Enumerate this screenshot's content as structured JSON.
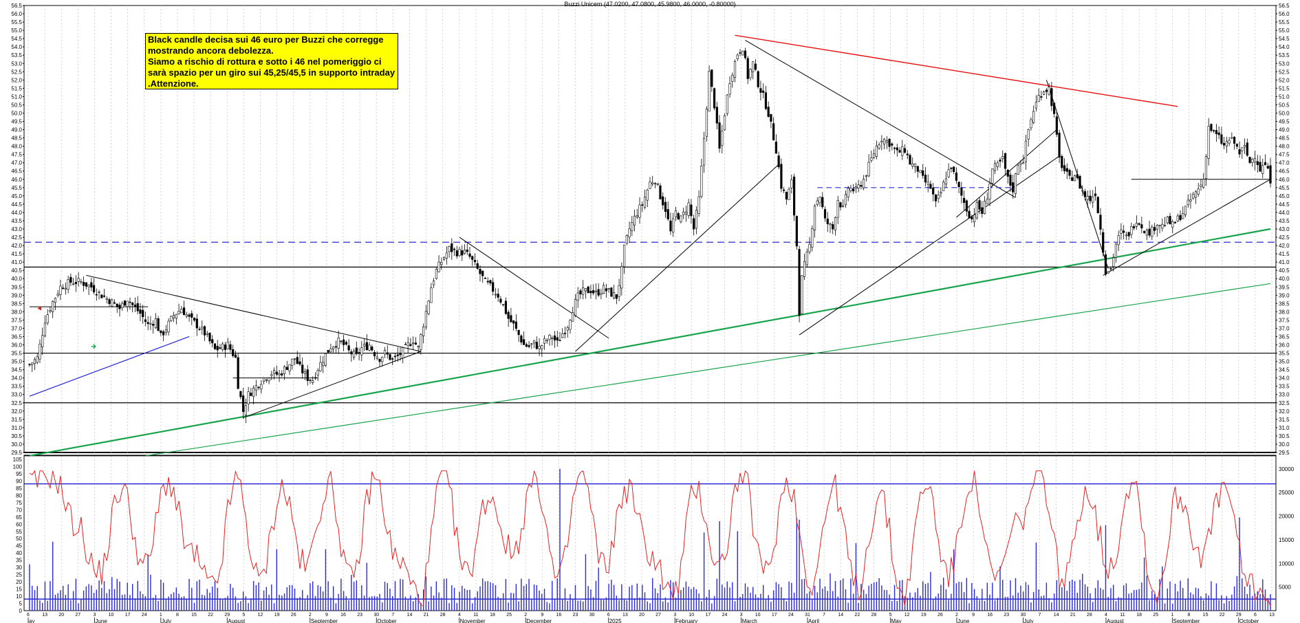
{
  "chart_title": "Buzzi Unicem (47.0200, 47.0800, 45.9800, 46.0000, -0.80000)",
  "annotation": "Black candle decisa sui 46 euro per Buzzi che corregge mostrando ancora debolezza.\nSiamo a rischio di rottura e sotto i 46 nel pomeriggio ci sarà spazio per un giro sui 45,25/45,5 in supporto intraday .Attenzione.",
  "colors": {
    "candle": "#000000",
    "grid": "#c8c8c8",
    "support": "#000000",
    "resistance_dash": "#2a2ad0",
    "green_trend": "#17a34a",
    "red_trend": "#e81010",
    "blue_trend": "#2020e0",
    "oscillator": "#e82020",
    "volume": "#2a2ad0"
  },
  "chart_data": [
    {
      "type": "candlestick",
      "title": "Buzzi Unicem (47.0200, 47.0800, 45.9800, 46.0000, -0.80000)",
      "last": {
        "open": 47.02,
        "high": 47.08,
        "low": 45.98,
        "close": 46.0,
        "change": -0.8
      },
      "ylim": [
        29.5,
        56.5
      ],
      "y_ticks": [
        "29.5",
        "30.0",
        "30.5",
        "31.0",
        "31.5",
        "32.0",
        "32.5",
        "33.0",
        "33.5",
        "34.0",
        "34.5",
        "35.0",
        "35.5",
        "36.0",
        "36.5",
        "37.0",
        "37.5",
        "38.0",
        "38.5",
        "39.0",
        "39.5",
        "40.0",
        "40.5",
        "41.0",
        "41.5",
        "42.0",
        "42.5",
        "43.0",
        "43.5",
        "44.0",
        "44.5",
        "45.0",
        "45.5",
        "46.0",
        "46.5",
        "47.0",
        "47.5",
        "48.0",
        "48.5",
        "49.0",
        "49.5",
        "50.0",
        "50.5",
        "51.0",
        "51.5",
        "52.0",
        "52.5",
        "53.0",
        "53.5",
        "54.0",
        "54.5",
        "55.0",
        "55.5",
        "56.0",
        "56.5"
      ],
      "close_path": [
        [
          0,
          34.8
        ],
        [
          3,
          35.2
        ],
        [
          6,
          37.5
        ],
        [
          9,
          38.6
        ],
        [
          12,
          39.5
        ],
        [
          16,
          39.8
        ],
        [
          20,
          39.8
        ],
        [
          24,
          39.5
        ],
        [
          28,
          39.0
        ],
        [
          31,
          38.7
        ],
        [
          35,
          38.2
        ],
        [
          38,
          38.8
        ],
        [
          40,
          38.4
        ],
        [
          43,
          37.9
        ],
        [
          46,
          37.2
        ],
        [
          49,
          37.5
        ],
        [
          51,
          36.5
        ],
        [
          53,
          37.0
        ],
        [
          56,
          37.8
        ],
        [
          59,
          38.2
        ],
        [
          62,
          37.6
        ],
        [
          65,
          37.2
        ],
        [
          68,
          36.7
        ],
        [
          70,
          36.2
        ],
        [
          72,
          35.7
        ],
        [
          74,
          35.8
        ],
        [
          77,
          36.0
        ],
        [
          80,
          35.2
        ],
        [
          81,
          33.6
        ],
        [
          83,
          32.0
        ],
        [
          85,
          33.0
        ],
        [
          88,
          33.5
        ],
        [
          91,
          34.0
        ],
        [
          94,
          34.3
        ],
        [
          97,
          34.2
        ],
        [
          100,
          34.7
        ],
        [
          103,
          35.2
        ],
        [
          105,
          34.6
        ],
        [
          108,
          34.0
        ],
        [
          110,
          33.9
        ],
        [
          112,
          34.6
        ],
        [
          115,
          35.4
        ],
        [
          117,
          35.9
        ],
        [
          120,
          36.2
        ],
        [
          122,
          36.0
        ],
        [
          124,
          35.6
        ],
        [
          127,
          35.3
        ],
        [
          129,
          35.8
        ],
        [
          132,
          36.0
        ],
        [
          134,
          35.5
        ],
        [
          136,
          35.2
        ],
        [
          138,
          35.5
        ],
        [
          141,
          35.1
        ],
        [
          143,
          35.3
        ],
        [
          145,
          35.6
        ],
        [
          147,
          36.0
        ],
        [
          149,
          36.3
        ],
        [
          151,
          35.8
        ],
        [
          154,
          38.0
        ],
        [
          156,
          39.5
        ],
        [
          158,
          40.5
        ],
        [
          161,
          41.3
        ],
        [
          163,
          41.8
        ],
        [
          166,
          41.6
        ],
        [
          169,
          41.6
        ],
        [
          171,
          41.3
        ],
        [
          173,
          40.8
        ],
        [
          175,
          40.3
        ],
        [
          177,
          39.8
        ],
        [
          179,
          39.5
        ],
        [
          182,
          39.0
        ],
        [
          184,
          38.4
        ],
        [
          186,
          37.6
        ],
        [
          188,
          37.2
        ],
        [
          190,
          36.6
        ],
        [
          192,
          36.0
        ],
        [
          194,
          35.9
        ],
        [
          196,
          36.1
        ],
        [
          198,
          35.8
        ],
        [
          200,
          36.2
        ],
        [
          203,
          36.5
        ],
        [
          205,
          36.1
        ],
        [
          207,
          36.7
        ],
        [
          209,
          37.2
        ],
        [
          211,
          38.2
        ],
        [
          213,
          38.9
        ],
        [
          215,
          39.2
        ],
        [
          218,
          39.3
        ],
        [
          220,
          39.1
        ],
        [
          223,
          39.4
        ],
        [
          225,
          39.2
        ],
        [
          228,
          38.9
        ],
        [
          230,
          40.5
        ],
        [
          231,
          41.8
        ],
        [
          233,
          43.0
        ],
        [
          236,
          44.0
        ],
        [
          238,
          44.5
        ],
        [
          241,
          45.8
        ],
        [
          243,
          46.0
        ],
        [
          245,
          45.0
        ],
        [
          247,
          44.2
        ],
        [
          249,
          42.8
        ],
        [
          251,
          44.0
        ],
        [
          253,
          43.6
        ],
        [
          256,
          44.5
        ],
        [
          258,
          43.0
        ],
        [
          260,
          44.8
        ],
        [
          262,
          48.5
        ],
        [
          264,
          52.4
        ],
        [
          266,
          50.5
        ],
        [
          268,
          47.8
        ],
        [
          270,
          50.0
        ],
        [
          272,
          52.0
        ],
        [
          275,
          53.6
        ],
        [
          277,
          54.0
        ],
        [
          279,
          52.2
        ],
        [
          281,
          53.0
        ],
        [
          283,
          51.8
        ],
        [
          285,
          51.0
        ],
        [
          287,
          50.0
        ],
        [
          290,
          47.8
        ],
        [
          292,
          45.6
        ],
        [
          294,
          44.8
        ],
        [
          296,
          45.8
        ],
        [
          298,
          42.0
        ],
        [
          299,
          38.0
        ],
        [
          300,
          40.0
        ],
        [
          301,
          40.8
        ],
        [
          303,
          42.0
        ],
        [
          305,
          44.5
        ],
        [
          307,
          45.0
        ],
        [
          309,
          43.5
        ],
        [
          312,
          43.0
        ],
        [
          314,
          44.8
        ],
        [
          316,
          44.2
        ],
        [
          318,
          45.5
        ],
        [
          321,
          45.3
        ],
        [
          324,
          46.0
        ],
        [
          327,
          47.2
        ],
        [
          329,
          48.0
        ],
        [
          331,
          48.5
        ],
        [
          334,
          48.2
        ],
        [
          337,
          47.6
        ],
        [
          340,
          47.8
        ],
        [
          342,
          47.0
        ],
        [
          345,
          46.6
        ],
        [
          347,
          46.0
        ],
        [
          350,
          45.5
        ],
        [
          352,
          44.5
        ],
        [
          354,
          45.2
        ],
        [
          356,
          46.2
        ],
        [
          358,
          46.8
        ],
        [
          360,
          45.8
        ],
        [
          362,
          45.0
        ],
        [
          364,
          44.2
        ],
        [
          366,
          43.6
        ],
        [
          368,
          44.4
        ],
        [
          370,
          44.0
        ],
        [
          372,
          45.0
        ],
        [
          374,
          46.6
        ],
        [
          376,
          46.8
        ],
        [
          378,
          47.2
        ],
        [
          380,
          46.0
        ],
        [
          382,
          45.4
        ],
        [
          384,
          47.0
        ],
        [
          386,
          47.2
        ],
        [
          388,
          49.0
        ],
        [
          390,
          50.2
        ],
        [
          392,
          51.0
        ],
        [
          394,
          51.4
        ],
        [
          396,
          51.5
        ],
        [
          398,
          49.8
        ],
        [
          400,
          47.2
        ],
        [
          402,
          46.5
        ],
        [
          404,
          46.0
        ],
        [
          406,
          46.3
        ],
        [
          408,
          45.6
        ],
        [
          410,
          45.0
        ],
        [
          412,
          44.8
        ],
        [
          414,
          45.2
        ],
        [
          416,
          43.0
        ],
        [
          418,
          40.5
        ],
        [
          420,
          40.6
        ],
        [
          422,
          42.1
        ],
        [
          424,
          42.8
        ],
        [
          426,
          42.5
        ],
        [
          428,
          43.0
        ],
        [
          430,
          43.6
        ],
        [
          432,
          43.2
        ],
        [
          434,
          42.8
        ],
        [
          436,
          42.9
        ],
        [
          438,
          43.4
        ],
        [
          440,
          43.2
        ],
        [
          442,
          43.5
        ],
        [
          444,
          43.2
        ],
        [
          446,
          43.6
        ],
        [
          448,
          44.0
        ],
        [
          450,
          44.5
        ],
        [
          452,
          45.0
        ],
        [
          454,
          45.4
        ],
        [
          456,
          46.0
        ],
        [
          458,
          49.2
        ],
        [
          460,
          48.8
        ],
        [
          462,
          48.5
        ],
        [
          464,
          48.0
        ],
        [
          466,
          48.4
        ],
        [
          468,
          48.2
        ],
        [
          470,
          47.6
        ],
        [
          472,
          47.9
        ],
        [
          474,
          47.0
        ],
        [
          476,
          47.5
        ],
        [
          478,
          46.6
        ],
        [
          480,
          46.9
        ],
        [
          482,
          46.0
        ]
      ],
      "horizontal_levels": [
        {
          "y": 42.2,
          "style": "dashed",
          "color": "blue"
        },
        {
          "y": 40.7,
          "style": "solid"
        },
        {
          "y": 35.5,
          "style": "solid"
        },
        {
          "y": 32.5,
          "style": "solid"
        },
        {
          "y": 29.3,
          "style": "solid"
        }
      ],
      "x_month_labels": [
        "ay",
        "June",
        "July",
        "August",
        "September",
        "October",
        "November",
        "December",
        "2025",
        "February",
        "March",
        "April",
        "May",
        "June",
        "July",
        "August",
        "September",
        "October"
      ],
      "x_day_labels": [
        "6",
        "13",
        "20",
        "27",
        "3",
        "10",
        "17",
        "24",
        "1",
        "8",
        "15",
        "22",
        "29",
        "5",
        "12",
        "19",
        "26",
        "2",
        "9",
        "16",
        "23",
        "30",
        "7",
        "14",
        "21",
        "28",
        "4",
        "11",
        "18",
        "25",
        "2",
        "9",
        "16",
        "23",
        "30",
        "6",
        "13",
        "20",
        "27",
        "3",
        "10",
        "17",
        "24",
        "3",
        "10",
        "17",
        "24",
        "31",
        "7",
        "14",
        "22",
        "28",
        "5",
        "12",
        "19",
        "26",
        "2",
        "9",
        "16",
        "23",
        "30",
        "7",
        "14",
        "21",
        "28",
        "4",
        "11",
        "18",
        "25",
        "1",
        "8",
        "15",
        "22",
        "29",
        "6",
        "13"
      ]
    },
    {
      "type": "line",
      "ylim": [
        0,
        105
      ],
      "y_ticks_left": [
        "0",
        "5",
        "10",
        "15",
        "20",
        "25",
        "30",
        "35",
        "40",
        "45",
        "50",
        "55",
        "60",
        "65",
        "70",
        "75",
        "80",
        "85",
        "90",
        "95",
        "100",
        "105"
      ],
      "y_ticks_right": [
        "5000",
        "10000",
        "15000",
        "20000",
        "25000",
        "30000"
      ],
      "reference_lines": [
        88,
        8
      ],
      "oscillator_seed_peaks": [
        88,
        95,
        60,
        25,
        85,
        30,
        90,
        40,
        15,
        90,
        20,
        85,
        30,
        88,
        20,
        92,
        35,
        10,
        95,
        25,
        80,
        40,
        92,
        20,
        95,
        30,
        85,
        40,
        10,
        85,
        30,
        95,
        25,
        90,
        20,
        85,
        15,
        80,
        10,
        88,
        25,
        92,
        20,
        60,
        95,
        20,
        85,
        30,
        92,
        10,
        80,
        40,
        85,
        20,
        8
      ],
      "volume_note": "volume bars in blue on right axis"
    }
  ]
}
